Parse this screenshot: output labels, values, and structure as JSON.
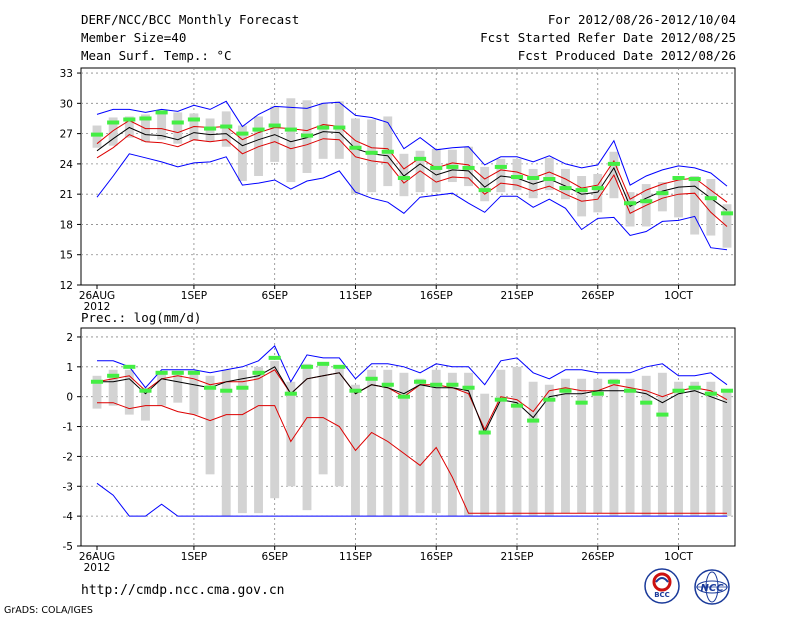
{
  "header": {
    "title_left": "DERF/NCC/BCC Monthly Forecast",
    "member_size": "Member Size=40",
    "variable_label": "Mean Surf. Temp.: °C",
    "forecast_period": "For 2012/08/26-2012/10/04",
    "fcst_started": "Fcst Started Refer Date 2012/08/25",
    "fcst_produced": "Fcst Produced Date 2012/08/26"
  },
  "footer": {
    "url": "http://cmdp.ncc.cma.gov.cn",
    "grads": "GrADS: COLA/IGES",
    "logo_bcc": "BCC",
    "logo_ncc": "NCC"
  },
  "colors": {
    "box": "#d3d3d3",
    "max_min": "#0000ff",
    "percentile": "#dd0000",
    "mean": "#000000",
    "observed": "#44ee44"
  },
  "chart_data": [
    {
      "type": "box-ensemble",
      "title": "Mean Surf. Temp.: °C",
      "ylim": [
        12,
        33.5
      ],
      "yticks": [
        12,
        15,
        18,
        21,
        24,
        27,
        30,
        33
      ],
      "xtick_days": [
        1,
        7,
        12,
        17,
        22,
        27,
        32,
        37
      ],
      "xtick_labels": [
        "26AUG",
        "1SEP",
        "6SEP",
        "11SEP",
        "16SEP",
        "21SEP",
        "26SEP",
        "1OCT"
      ],
      "xtick_sublabel": "2012",
      "ndays": 40,
      "series": [
        {
          "name": "max",
          "values": [
            28.9,
            29.4,
            29.4,
            29.1,
            29.4,
            29.2,
            29.8,
            29.4,
            30.2,
            27.7,
            28.9,
            29.7,
            29.6,
            29.5,
            30.0,
            30.1,
            28.8,
            28.6,
            28.1,
            25.5,
            26.6,
            25.4,
            25.6,
            25.7,
            23.9,
            24.7,
            24.7,
            24.2,
            24.8,
            24.0,
            23.6,
            23.9,
            26.3,
            21.9,
            22.8,
            23.4,
            23.8,
            23.6,
            23.1,
            21.8
          ]
        },
        {
          "name": "p75",
          "values": [
            26.0,
            27.3,
            28.3,
            27.5,
            27.5,
            27.1,
            27.7,
            27.6,
            27.7,
            26.4,
            27.1,
            27.6,
            27.5,
            27.3,
            27.9,
            27.7,
            26.3,
            25.6,
            25.5,
            23.5,
            24.6,
            23.6,
            24.1,
            23.9,
            22.5,
            23.4,
            23.2,
            22.6,
            23.2,
            22.5,
            21.6,
            21.9,
            24.3,
            20.5,
            21.4,
            22.0,
            22.4,
            22.6,
            21.4,
            20.2
          ]
        },
        {
          "name": "mean",
          "values": [
            25.3,
            26.5,
            27.6,
            26.9,
            26.8,
            26.4,
            27.1,
            26.9,
            27.0,
            25.8,
            26.4,
            26.9,
            26.2,
            26.6,
            27.2,
            27.1,
            25.5,
            25.0,
            24.8,
            22.8,
            24.0,
            22.9,
            23.4,
            23.3,
            21.7,
            22.8,
            22.6,
            22.0,
            22.5,
            21.8,
            21.0,
            21.2,
            23.6,
            19.8,
            20.6,
            21.3,
            21.7,
            21.8,
            20.6,
            19.4
          ]
        },
        {
          "name": "p25",
          "values": [
            24.6,
            25.6,
            26.9,
            26.2,
            26.1,
            25.7,
            26.4,
            26.2,
            26.4,
            25.0,
            25.7,
            26.2,
            25.5,
            25.9,
            26.5,
            26.4,
            24.7,
            24.3,
            24.1,
            22.1,
            23.3,
            22.2,
            22.7,
            22.6,
            21.0,
            22.1,
            21.9,
            21.3,
            21.8,
            21.0,
            20.3,
            20.5,
            22.9,
            19.1,
            19.9,
            20.6,
            21.0,
            21.1,
            19.2,
            17.8
          ]
        },
        {
          "name": "min",
          "values": [
            20.7,
            22.8,
            25.0,
            24.6,
            24.2,
            23.7,
            24.1,
            24.2,
            24.7,
            21.9,
            22.1,
            22.4,
            21.5,
            22.3,
            22.6,
            23.3,
            21.2,
            20.6,
            20.2,
            19.1,
            20.7,
            20.9,
            21.1,
            20.1,
            19.2,
            20.8,
            20.8,
            19.7,
            20.5,
            19.6,
            17.5,
            18.6,
            18.7,
            16.9,
            17.3,
            18.3,
            18.4,
            18.8,
            15.7,
            15.5
          ]
        },
        {
          "name": "box_top",
          "values": [
            27.8,
            28.6,
            28.7,
            28.9,
            29.3,
            29.1,
            29.0,
            28.5,
            29.2,
            27.8,
            28.7,
            29.7,
            30.5,
            30.3,
            30.0,
            30.2,
            28.5,
            28.4,
            28.7,
            25.0,
            25.3,
            25.5,
            25.4,
            25.7,
            23.7,
            24.5,
            24.5,
            23.5,
            24.6,
            23.5,
            22.8,
            23.0,
            25.2,
            21.2,
            22.0,
            22.2,
            22.7,
            22.8,
            22.5,
            20.0
          ]
        },
        {
          "name": "box_bottom",
          "values": [
            25.6,
            25.8,
            26.6,
            26.2,
            26.4,
            26.0,
            26.3,
            26.2,
            25.7,
            22.3,
            22.8,
            24.2,
            22.2,
            23.1,
            24.5,
            24.5,
            21.0,
            21.2,
            21.8,
            20.8,
            21.2,
            21.2,
            22.2,
            21.8,
            20.3,
            21.2,
            21.4,
            20.6,
            21.4,
            20.5,
            18.8,
            19.2,
            20.6,
            17.8,
            17.8,
            19.3,
            18.7,
            17.0,
            16.9,
            15.7
          ]
        },
        {
          "name": "observed",
          "values": [
            26.9,
            28.1,
            28.4,
            28.5,
            29.1,
            28.1,
            28.4,
            27.5,
            27.7,
            27.0,
            27.4,
            27.8,
            27.4,
            26.8,
            27.6,
            27.6,
            25.6,
            25.1,
            25.2,
            22.6,
            24.5,
            23.6,
            23.7,
            23.6,
            21.4,
            23.7,
            22.7,
            22.6,
            22.5,
            21.6,
            21.4,
            21.6,
            24.0,
            20.1,
            20.3,
            21.1,
            22.6,
            22.5,
            20.6,
            19.1
          ]
        }
      ]
    },
    {
      "type": "box-ensemble",
      "title": "Prec.: log(mm/d)",
      "ylim": [
        -5,
        2.3
      ],
      "yticks": [
        -5,
        -4,
        -3,
        -2,
        -1,
        0,
        1,
        2
      ],
      "xtick_days": [
        1,
        7,
        12,
        17,
        22,
        27,
        32,
        37
      ],
      "xtick_labels": [
        "26AUG",
        "1SEP",
        "6SEP",
        "11SEP",
        "16SEP",
        "21SEP",
        "26SEP",
        "1OCT"
      ],
      "xtick_sublabel": "2012",
      "ndays": 40,
      "series": [
        {
          "name": "max",
          "values": [
            1.2,
            1.2,
            1.0,
            0.3,
            0.9,
            0.9,
            0.9,
            0.8,
            0.9,
            1.0,
            1.2,
            1.7,
            0.5,
            1.4,
            1.3,
            1.3,
            0.6,
            1.1,
            1.1,
            1.0,
            0.8,
            1.1,
            1.0,
            1.0,
            0.4,
            1.2,
            1.3,
            0.8,
            0.6,
            0.9,
            0.9,
            0.8,
            0.8,
            0.8,
            1.0,
            1.1,
            0.7,
            0.7,
            0.8,
            0.4
          ]
        },
        {
          "name": "p75",
          "values": [
            0.5,
            0.6,
            0.7,
            0.2,
            0.6,
            0.7,
            0.6,
            0.4,
            0.5,
            0.5,
            0.6,
            0.9,
            0.1,
            0.6,
            0.7,
            0.8,
            0.1,
            0.4,
            0.3,
            0.0,
            0.4,
            0.4,
            0.3,
            0.1,
            -1.1,
            0.0,
            -0.1,
            -0.5,
            0.2,
            0.3,
            0.2,
            0.2,
            0.4,
            0.3,
            0.2,
            0.0,
            0.2,
            0.3,
            0.2,
            -0.1
          ]
        },
        {
          "name": "mean",
          "values": [
            0.5,
            0.5,
            0.6,
            0.1,
            0.6,
            0.5,
            0.4,
            0.3,
            0.5,
            0.6,
            0.7,
            1.0,
            0.1,
            0.6,
            0.7,
            0.8,
            0.1,
            0.4,
            0.3,
            0.1,
            0.4,
            0.3,
            0.3,
            0.2,
            -1.2,
            -0.1,
            -0.2,
            -0.7,
            0.0,
            0.1,
            0.1,
            0.2,
            0.2,
            0.2,
            0.1,
            -0.2,
            0.1,
            0.2,
            0.0,
            -0.2
          ]
        },
        {
          "name": "p25",
          "values": [
            -0.2,
            -0.2,
            -0.4,
            -0.3,
            -0.3,
            -0.5,
            -0.6,
            -0.8,
            -0.6,
            -0.6,
            -0.3,
            -0.3,
            -1.5,
            -0.7,
            -0.7,
            -1.0,
            -1.8,
            -1.2,
            -1.5,
            -1.9,
            -2.3,
            -1.7,
            -2.7,
            -3.9,
            -3.9,
            -3.9,
            -3.9,
            -3.9,
            -3.9,
            -3.9,
            -3.9,
            -3.9,
            -3.9,
            -3.9,
            -3.9,
            -3.9,
            -3.9,
            -3.9,
            -3.9,
            -3.9
          ]
        },
        {
          "name": "min",
          "values": [
            -2.9,
            -3.3,
            -4.0,
            -4.0,
            -3.6,
            -4.0,
            -4.0,
            -4.0,
            -4.0,
            -4.0,
            -4.0,
            -4.0,
            -4.0,
            -4.0,
            -4.0,
            -4.0,
            -4.0,
            -4.0,
            -4.0,
            -4.0,
            -4.0,
            -4.0,
            -4.0,
            -4.0,
            -4.0,
            -4.0,
            -4.0,
            -4.0,
            -4.0,
            -4.0,
            -4.0,
            -4.0,
            -4.0,
            -4.0,
            -4.0,
            -4.0,
            -4.0,
            -4.0,
            -4.0,
            -4.0
          ]
        },
        {
          "name": "box_top",
          "values": [
            0.7,
            0.9,
            0.9,
            0.3,
            0.8,
            0.8,
            0.8,
            0.7,
            0.9,
            0.9,
            1.0,
            1.2,
            0.5,
            1.1,
            1.1,
            1.0,
            0.4,
            0.9,
            0.9,
            0.8,
            0.6,
            0.9,
            0.8,
            0.8,
            0.1,
            0.9,
            1.0,
            0.5,
            0.4,
            0.6,
            0.6,
            0.6,
            0.6,
            0.6,
            0.7,
            0.8,
            0.5,
            0.5,
            0.5,
            0.2
          ]
        },
        {
          "name": "box_bottom",
          "values": [
            -0.4,
            -0.3,
            -0.6,
            -0.8,
            -0.3,
            -0.2,
            -0.6,
            -2.6,
            -4.0,
            -3.9,
            -3.9,
            -3.4,
            -3.0,
            -3.8,
            -2.6,
            -3.0,
            -4.0,
            -4.0,
            -4.0,
            -4.0,
            -3.9,
            -3.9,
            -4.0,
            -4.0,
            -4.0,
            -4.0,
            -4.0,
            -4.0,
            -4.0,
            -3.9,
            -3.9,
            -3.9,
            -4.0,
            -3.9,
            -4.0,
            -4.0,
            -4.0,
            -4.0,
            -4.0,
            -4.0
          ]
        },
        {
          "name": "observed",
          "values": [
            0.5,
            0.7,
            1.0,
            0.2,
            0.8,
            0.8,
            0.8,
            0.3,
            0.2,
            0.3,
            0.8,
            1.3,
            0.1,
            1.0,
            1.1,
            1.0,
            0.2,
            0.6,
            0.4,
            0.0,
            0.5,
            0.4,
            0.4,
            0.3,
            -1.2,
            -0.1,
            -0.3,
            -0.8,
            -0.1,
            0.2,
            -0.2,
            0.1,
            0.5,
            0.2,
            -0.2,
            -0.6,
            0.2,
            0.3,
            0.1,
            0.2
          ]
        }
      ]
    }
  ]
}
